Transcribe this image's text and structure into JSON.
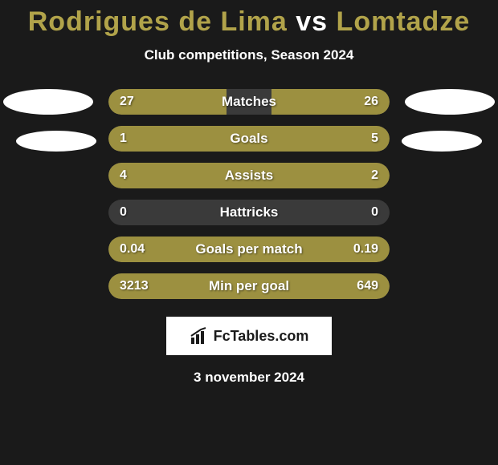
{
  "title": {
    "player1": "Rodrigues de Lima",
    "vs": "vs",
    "player2": "Lomtadze",
    "player1_color": "#b1a34a",
    "vs_color": "#ffffff",
    "player2_color": "#b1a34a",
    "fontsize": 34
  },
  "subtitle": "Club competitions, Season 2024",
  "background_color": "#1a1a1a",
  "bar_bg_color": "#3a3a3a",
  "bar_fill_color": "#9c9040",
  "text_color": "#ffffff",
  "photo_color": "#ffffff",
  "stats": [
    {
      "label": "Matches",
      "left_value": "27",
      "right_value": "26",
      "left_width_pct": 42,
      "right_width_pct": 42
    },
    {
      "label": "Goals",
      "left_value": "1",
      "right_value": "5",
      "left_width_pct": 18,
      "right_width_pct": 82
    },
    {
      "label": "Assists",
      "left_value": "4",
      "right_value": "2",
      "left_width_pct": 67,
      "right_width_pct": 33
    },
    {
      "label": "Hattricks",
      "left_value": "0",
      "right_value": "0",
      "left_width_pct": 0,
      "right_width_pct": 0
    },
    {
      "label": "Goals per match",
      "left_value": "0.04",
      "right_value": "0.19",
      "left_width_pct": 18,
      "right_width_pct": 82
    },
    {
      "label": "Min per goal",
      "left_value": "3213",
      "right_value": "649",
      "left_width_pct": 82,
      "right_width_pct": 18
    }
  ],
  "logo_text": "FcTables.com",
  "date": "3 november 2024"
}
